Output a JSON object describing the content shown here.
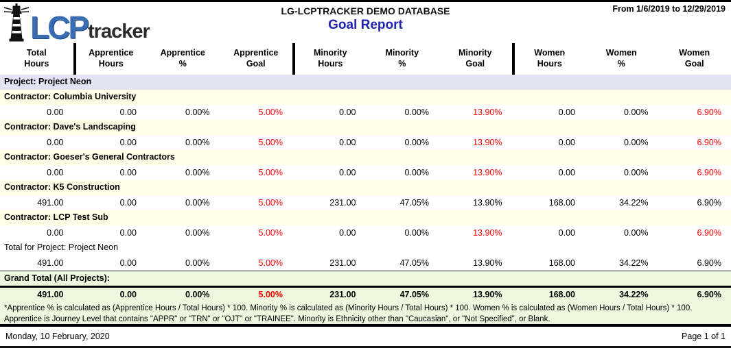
{
  "header": {
    "logo_lcp": "LCP",
    "logo_tracker": "tracker",
    "database_title": "LG-LCPTRACKER DEMO DATABASE",
    "report_title": "Goal Report",
    "date_range": "From 1/6/2019 to 12/29/2019"
  },
  "colors": {
    "report_title_blue": "#2222B2",
    "unmet_goal_red": "#FF0000",
    "logo_blue": "#3A6CB4",
    "project_row_bg": "#E3E3F4",
    "contractor_row_bg": "#FEFFE6",
    "grand_total_bg": "#EDF8DE"
  },
  "columns": [
    {
      "key": "total-hours",
      "line1": "Total",
      "line2": "Hours"
    },
    {
      "key": "apprentice-hours",
      "line1": "Apprentice",
      "line2": "Hours"
    },
    {
      "key": "apprentice-percent",
      "line1": "Apprentice",
      "line2": "%"
    },
    {
      "key": "apprentice-goal",
      "line1": "Apprentice",
      "line2": "Goal"
    },
    {
      "key": "minority-hours",
      "line1": "Minority",
      "line2": "Hours"
    },
    {
      "key": "minority-percent",
      "line1": "Minority",
      "line2": "%"
    },
    {
      "key": "minority-goal",
      "line1": "Minority",
      "line2": "Goal"
    },
    {
      "key": "women-hours",
      "line1": "Women",
      "line2": "Hours"
    },
    {
      "key": "women-percent",
      "line1": "Women",
      "line2": "%"
    },
    {
      "key": "women-goal",
      "line1": "Women",
      "line2": "Goal"
    }
  ],
  "rows": [
    {
      "type": "project-label",
      "label": "Project: Project Neon"
    },
    {
      "type": "contractor-label",
      "label": "Contractor: Columbia University"
    },
    {
      "type": "values",
      "values": [
        "0.00",
        "0.00",
        "0.00%",
        "5.00%",
        "0.00",
        "0.00%",
        "13.90%",
        "0.00",
        "0.00%",
        "6.90%"
      ],
      "red": [
        3,
        6,
        9
      ]
    },
    {
      "type": "contractor-label",
      "label": "Contractor: Dave's Landscaping"
    },
    {
      "type": "values",
      "values": [
        "0.00",
        "0.00",
        "0.00%",
        "5.00%",
        "0.00",
        "0.00%",
        "13.90%",
        "0.00",
        "0.00%",
        "6.90%"
      ],
      "red": [
        3,
        6,
        9
      ]
    },
    {
      "type": "contractor-label",
      "label": "Contractor: Goeser's General Contractors"
    },
    {
      "type": "values",
      "values": [
        "0.00",
        "0.00",
        "0.00%",
        "5.00%",
        "0.00",
        "0.00%",
        "13.90%",
        "0.00",
        "0.00%",
        "6.90%"
      ],
      "red": [
        3,
        6,
        9
      ]
    },
    {
      "type": "contractor-label",
      "label": "Contractor: K5 Construction"
    },
    {
      "type": "values",
      "values": [
        "491.00",
        "0.00",
        "0.00%",
        "5.00%",
        "231.00",
        "47.05%",
        "13.90%",
        "168.00",
        "34.22%",
        "6.90%"
      ],
      "red": [
        3
      ]
    },
    {
      "type": "contractor-label",
      "label": "Contractor: LCP Test Sub"
    },
    {
      "type": "values",
      "values": [
        "0.00",
        "0.00",
        "0.00%",
        "5.00%",
        "0.00",
        "0.00%",
        "13.90%",
        "0.00",
        "0.00%",
        "6.90%"
      ],
      "red": [
        3,
        6,
        9
      ]
    },
    {
      "type": "total-label",
      "label": "Total for Project: Project Neon"
    },
    {
      "type": "values",
      "values": [
        "491.00",
        "0.00",
        "0.00%",
        "5.00%",
        "231.00",
        "47.05%",
        "13.90%",
        "168.00",
        "34.22%",
        "6.90%"
      ],
      "red": [
        3
      ]
    },
    {
      "type": "grand-label",
      "label": "Grand Total (All Projects):"
    },
    {
      "type": "grand-values",
      "values": [
        "491.00",
        "0.00",
        "0.00%",
        "5.00%",
        "231.00",
        "47.05%",
        "13.90%",
        "168.00",
        "34.22%",
        "6.90%"
      ],
      "red": [
        3
      ]
    }
  ],
  "footnote": {
    "line1": "*Apprentice % is calculated as (Apprentice Hours / Total Hours) * 100. Minority % is calculated as (Minority Hours / Total Hours) * 100. Women % is calculated as (Women Hours / Total Hours) * 100.",
    "line2": "Apprentice is Journey Level that contains \"APPR\" or \"TRN\" or \"OJT\" or \"TRAINEE\". Minority is Ethnicity other than \"Caucasian\", or \"Not Specified\", or Blank."
  },
  "footer": {
    "date": "Monday, 10 February, 2020",
    "page": "Page 1 of 1"
  }
}
